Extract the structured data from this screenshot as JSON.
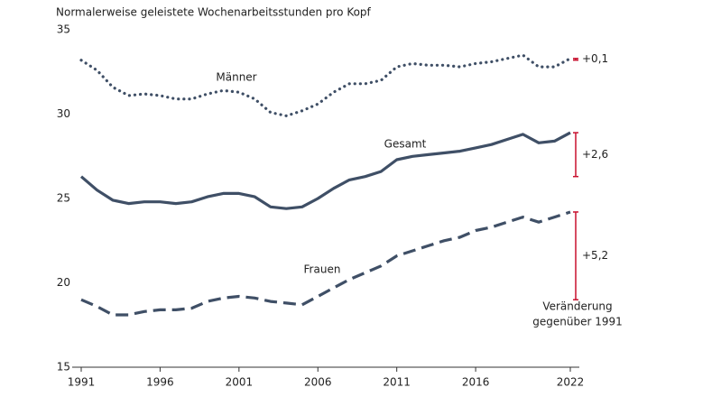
{
  "chart_data": {
    "type": "line",
    "title": "Normalerweise geleistete Wochenarbeitsstunden pro Kopf",
    "x": [
      1991,
      1992,
      1993,
      1994,
      1995,
      1996,
      1997,
      1998,
      1999,
      2000,
      2001,
      2002,
      2003,
      2004,
      2005,
      2006,
      2007,
      2008,
      2009,
      2010,
      2011,
      2012,
      2013,
      2014,
      2015,
      2016,
      2017,
      2018,
      2019,
      2020,
      2021,
      2022
    ],
    "xlim": [
      1991,
      2022
    ],
    "xticks": [
      1991,
      1996,
      2001,
      2006,
      2011,
      2016,
      2022
    ],
    "ylim": [
      15,
      35
    ],
    "yticks": [
      15,
      20,
      25,
      30,
      35
    ],
    "series": [
      {
        "name": "Männer",
        "color": "#3f4f66",
        "dash": "dotted",
        "values": [
          33.2,
          32.6,
          31.6,
          31.1,
          31.2,
          31.1,
          30.9,
          30.9,
          31.2,
          31.4,
          31.3,
          30.9,
          30.1,
          29.9,
          30.2,
          30.6,
          31.3,
          31.8,
          31.8,
          32.0,
          32.8,
          33.0,
          32.9,
          32.9,
          32.8,
          33.0,
          33.1,
          33.3,
          33.5,
          32.8,
          32.8,
          33.3
        ],
        "change": "+0,1"
      },
      {
        "name": "Gesamt",
        "color": "#3f4f66",
        "dash": "solid",
        "values": [
          26.3,
          25.5,
          24.9,
          24.7,
          24.8,
          24.8,
          24.7,
          24.8,
          25.1,
          25.3,
          25.3,
          25.1,
          24.5,
          24.4,
          24.5,
          25.0,
          25.6,
          26.1,
          26.3,
          26.6,
          27.3,
          27.5,
          27.6,
          27.7,
          27.8,
          28.0,
          28.2,
          28.5,
          28.8,
          28.3,
          28.4,
          28.9
        ],
        "change": "+2,6"
      },
      {
        "name": "Frauen",
        "color": "#3f4f66",
        "dash": "dashed",
        "values": [
          19.0,
          18.6,
          18.1,
          18.1,
          18.3,
          18.4,
          18.4,
          18.5,
          18.9,
          19.1,
          19.2,
          19.1,
          18.9,
          18.8,
          18.7,
          19.2,
          19.7,
          20.2,
          20.6,
          21.0,
          21.6,
          21.9,
          22.2,
          22.5,
          22.7,
          23.1,
          23.3,
          23.6,
          23.9,
          23.6,
          23.9,
          24.2
        ],
        "change": "+5,2"
      }
    ],
    "bracket_color": "#c8102e",
    "note": [
      "Veränderung",
      "gegenüber 1991"
    ]
  }
}
